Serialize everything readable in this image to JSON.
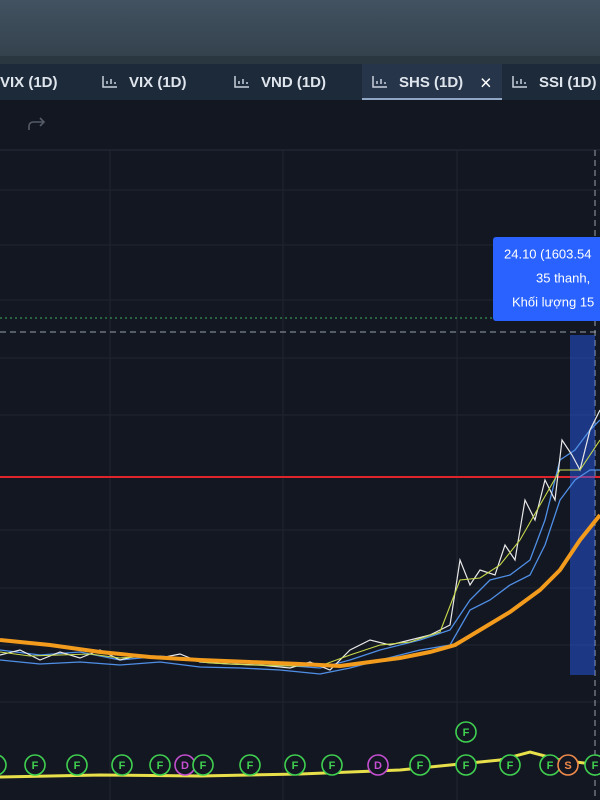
{
  "tabs": [
    {
      "label": "VIX (1D)"
    },
    {
      "label": "VIX (1D)"
    },
    {
      "label": "VND (1D)"
    },
    {
      "label": "SHS (1D)",
      "close": "×"
    },
    {
      "label": "SSI (1D)"
    }
  ],
  "tooltip": {
    "lines": [
      "24.10 (1603.54",
      "35 thanh,",
      "Khối lượng 15"
    ]
  },
  "markers": [
    "F",
    "F",
    "F",
    "F",
    "F",
    "D",
    "F",
    "F",
    "F",
    "F",
    "D",
    "F",
    "F",
    "F",
    "F",
    "S",
    "F",
    "F"
  ]
}
